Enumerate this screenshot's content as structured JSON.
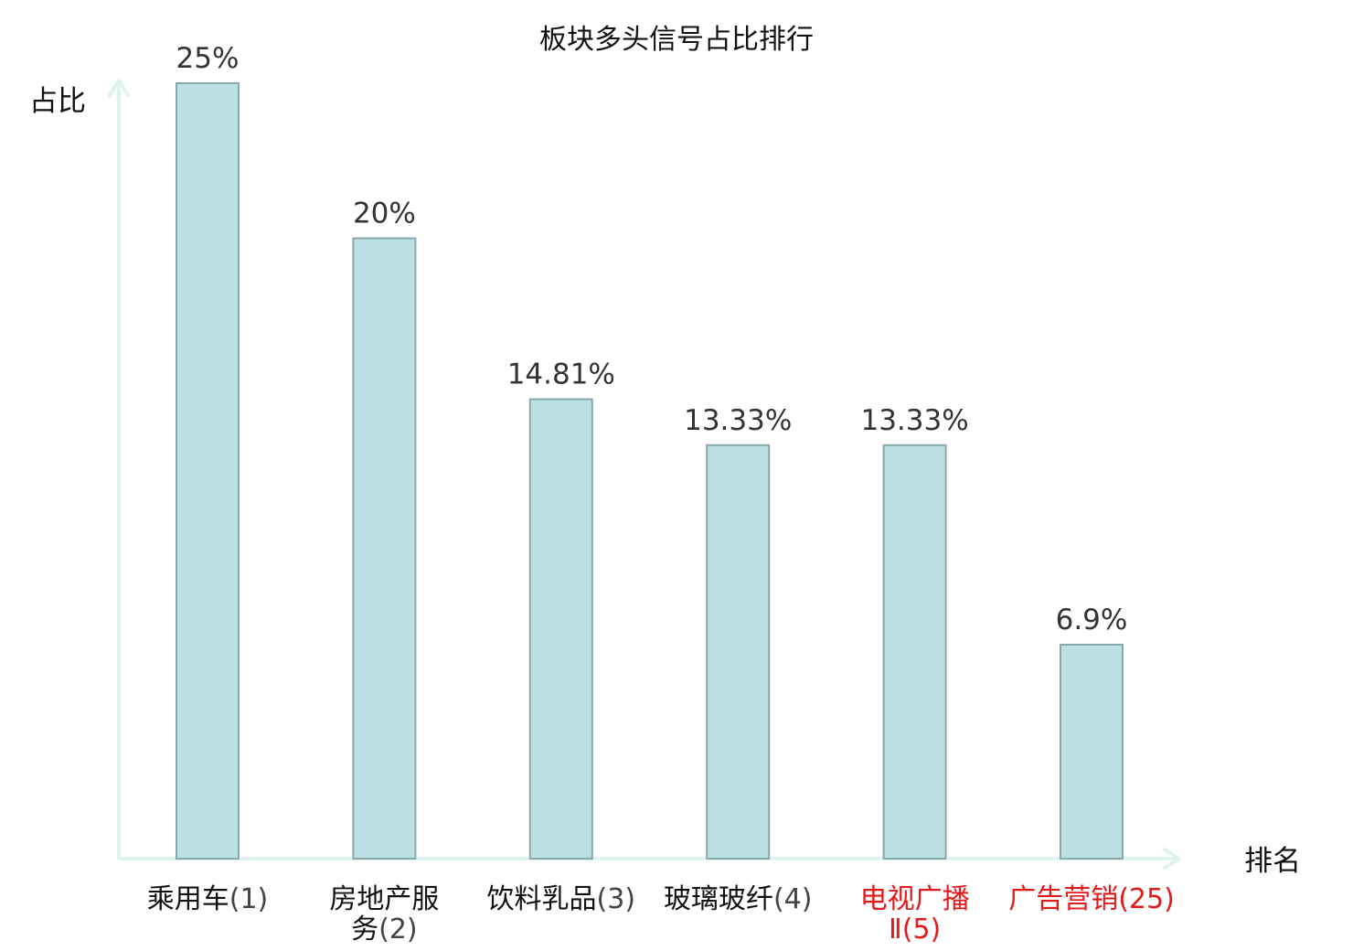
{
  "chart_data": {
    "type": "bar",
    "title": "板块多头信号占比排行",
    "xlabel": "排名",
    "ylabel": "占比",
    "ylim": [
      0,
      25
    ],
    "grid": false,
    "categories": [
      {
        "name": "乘用车",
        "rank": "(1)",
        "lines": [
          "乘用车(1)"
        ],
        "highlight": false
      },
      {
        "name": "房地产服务",
        "rank": "(2)",
        "lines": [
          "房地产服",
          "务(2)"
        ],
        "highlight": false
      },
      {
        "name": "饮料乳品",
        "rank": "(3)",
        "lines": [
          "饮料乳品(3)"
        ],
        "highlight": false
      },
      {
        "name": "玻璃玻纤",
        "rank": "(4)",
        "lines": [
          "玻璃玻纤(4)"
        ],
        "highlight": false
      },
      {
        "name": "电视广播Ⅱ",
        "rank": "(5)",
        "lines": [
          "电视广播",
          "Ⅱ(5)"
        ],
        "highlight": true
      },
      {
        "name": "广告营销",
        "rank": "(25)",
        "lines": [
          "广告营销(25)"
        ],
        "highlight": true
      }
    ],
    "values": [
      25,
      20,
      14.81,
      13.33,
      13.33,
      6.9
    ],
    "value_labels": [
      "25%",
      "20%",
      "14.81%",
      "13.33%",
      "13.33%",
      "6.9%"
    ]
  },
  "colors": {
    "bar_fill": "#bce0e3",
    "bar_stroke": "#88a9ac",
    "axis": "#e0f3f1",
    "highlight": "#e31a1c",
    "value_text": "#333333",
    "text": "#111111"
  }
}
